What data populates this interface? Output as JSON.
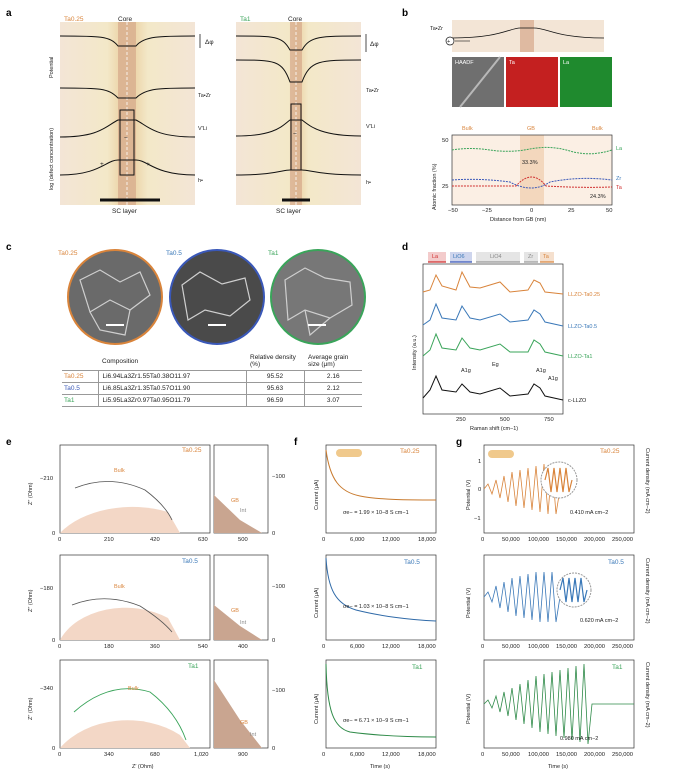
{
  "panel_letters": [
    "a",
    "b",
    "c",
    "d",
    "e",
    "f",
    "g"
  ],
  "panel_a": {
    "left": {
      "title": "Ta0.25",
      "core": "Core",
      "delta": "Δφ",
      "sc": "SC layer"
    },
    "right": {
      "title": "Ta1",
      "core": "Core",
      "delta": "Δφ",
      "sc": "SC layer"
    },
    "y_labels": {
      "potential": "Potential",
      "log": "log (defect concentration)"
    },
    "species": [
      "Ta•Zr",
      "V′Li",
      "h•"
    ],
    "plus": "+",
    "minus": "−"
  },
  "panel_b": {
    "species": "Ta•Zr",
    "maps": [
      "HAADF",
      "Ta",
      "La"
    ],
    "region_labels": [
      "Bulk",
      "GB",
      "Bulk"
    ],
    "ylabel": "Atomic fraction (%)",
    "xlabel": "Distance from GB (nm)",
    "annotations": [
      "33.3%",
      "24.3%"
    ],
    "legend": [
      "La",
      "Zr",
      "Ta"
    ],
    "yticks": [
      "25",
      "50"
    ],
    "xticks": [
      "−50",
      "−25",
      "0",
      "25",
      "50"
    ]
  },
  "panel_c": {
    "labels": [
      "Ta0.25",
      "Ta0.5",
      "Ta1"
    ],
    "table": {
      "headers": [
        "Composition",
        "Relative density (%)",
        "Average grain size (μm)"
      ],
      "rows": [
        {
          "name": "Ta0.25",
          "comp": "Li6.94La3Zr1.55Ta0.38O11.97",
          "density": "95.52",
          "grain": "2.16"
        },
        {
          "name": "Ta0.5",
          "comp": "Li6.85La3Zr1.35Ta0.57O11.90",
          "density": "95.63",
          "grain": "2.12"
        },
        {
          "name": "Ta1",
          "comp": "Li5.95La3Zr0.97Ta0.95O11.79",
          "density": "96.59",
          "grain": "3.07"
        }
      ]
    }
  },
  "panel_d": {
    "legend": [
      "La",
      "LiO6",
      "LiO4",
      "Zr",
      "Ta"
    ],
    "ylabel": "Intensity (a.u.)",
    "xlabel": "Raman shift (cm−1)",
    "xticks": [
      "250",
      "500",
      "750"
    ],
    "spectra": [
      "LLZO-Ta0.25",
      "LLZO-Ta0.5",
      "LLZO-Ta1",
      "c-LLZO"
    ],
    "modes": [
      "A1g",
      "Eg",
      "A1g",
      "A1g"
    ]
  },
  "panel_e": {
    "rows": [
      {
        "label": "Ta0.25",
        "yticks": [
          "−210",
          "0"
        ],
        "xticks": [
          "0",
          "210",
          "420",
          "630"
        ],
        "inset_x": [
          "500"
        ],
        "inset_y": [
          "−100",
          "0"
        ]
      },
      {
        "label": "Ta0.5",
        "yticks": [
          "−180",
          "0"
        ],
        "xticks": [
          "0",
          "180",
          "360",
          "540"
        ],
        "inset_x": [
          "400"
        ],
        "inset_y": [
          "−100",
          "0"
        ]
      },
      {
        "label": "Ta1",
        "yticks": [
          "−340",
          "0"
        ],
        "xticks": [
          "0",
          "340",
          "680",
          "1,020"
        ],
        "inset_x": [
          "900"
        ],
        "inset_y": [
          "−100",
          "0"
        ]
      }
    ],
    "ylabel": "Z″ (Ohm)",
    "xlabel": "Z′ (Ohm)",
    "arcs": [
      "Bulk",
      "GB",
      "Int"
    ]
  },
  "panel_f": {
    "rows": [
      {
        "label": "Ta0.25",
        "sigma": "σe− = 1.99 × 10−8 S cm−1",
        "yticks": [
          "0.5",
          "1.0"
        ]
      },
      {
        "label": "Ta0.5",
        "sigma": "σe− = 1.03 × 10−8 S cm−1",
        "yticks": [
          "0.5",
          "1.0"
        ]
      },
      {
        "label": "Ta1",
        "sigma": "σe− = 6.71 × 10−9 S cm−1",
        "yticks": [
          "0.5",
          "1.0"
        ]
      }
    ],
    "ylabel": "Current (μA)",
    "xlabel": "Time (s)",
    "xticks": [
      "0",
      "6,000",
      "12,000",
      "18,000"
    ]
  },
  "panel_g": {
    "rows": [
      {
        "label": "Ta0.25",
        "cd": "0.410 mA cm−2"
      },
      {
        "label": "Ta0.5",
        "cd": "0.620 mA cm−2"
      },
      {
        "label": "Ta1",
        "cd": "0.980 mA cm−2"
      }
    ],
    "ylabel": "Potential (V)",
    "y2label": "Current density (mA cm−2)",
    "xlabel": "Time (s)",
    "xticks": [
      "0",
      "50,000",
      "100,000",
      "150,000",
      "200,000",
      "250,000"
    ],
    "yticks": [
      "−1",
      "0",
      "1"
    ]
  }
}
